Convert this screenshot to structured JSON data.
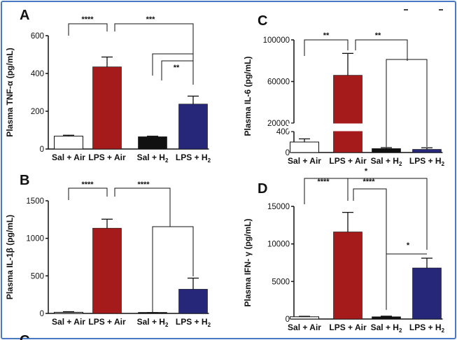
{
  "chart_data": [
    {
      "panel_label": "A",
      "type": "bar",
      "ylabel": "Plasma TNF-α (pg/mL)",
      "ylim": [
        0,
        600
      ],
      "yticks": [
        "0",
        "200",
        "400",
        "600"
      ],
      "tick_values": [
        0,
        200,
        400,
        600
      ],
      "categories": [
        "Sal + Air",
        "LPS + Air",
        "Sal + H",
        "LPS + H"
      ],
      "subscripts": [
        "",
        "",
        "2",
        "2"
      ],
      "values": [
        68,
        435,
        65,
        238
      ],
      "errors": [
        5,
        52,
        3,
        42
      ],
      "bar_colors": [
        "#ffffff",
        "#a51b1b",
        "#111111",
        "#27277a"
      ],
      "significance": [
        {
          "from": 0,
          "to": 1,
          "label": "****"
        },
        {
          "from": 1,
          "to": 3,
          "label": "***"
        },
        {
          "from": 2,
          "to": 3,
          "label": "**"
        }
      ]
    },
    {
      "panel_label": "B",
      "type": "bar",
      "ylabel": "Plasma IL-1β (pg/mL)",
      "ylim": [
        0,
        1500
      ],
      "yticks": [
        "0",
        "500",
        "1000",
        "1500"
      ],
      "tick_values": [
        0,
        500,
        1000,
        1500
      ],
      "categories": [
        "Sal + Air",
        "LPS + Air",
        "Sal + H",
        "LPS + H"
      ],
      "subscripts": [
        "",
        "",
        "2",
        "2"
      ],
      "values": [
        15,
        1135,
        8,
        322
      ],
      "errors": [
        8,
        120,
        3,
        148
      ],
      "bar_colors": [
        "#ffffff",
        "#a51b1b",
        "#111111",
        "#27277a"
      ],
      "significance": [
        {
          "from": 0,
          "to": 1,
          "label": "****"
        },
        {
          "from": 1,
          "to": 3,
          "label": "****"
        }
      ]
    },
    {
      "panel_label": "C",
      "type": "bar",
      "broken_axis": true,
      "ylabel": "Plasma IL-6 (pg/mL)",
      "ylim": [
        0,
        100000
      ],
      "yticks": [
        "0",
        "400",
        "20000",
        "60000",
        "100000"
      ],
      "tick_values": [
        0,
        400,
        20000,
        60000,
        100000
      ],
      "categories": [
        "Sal + Air",
        "LPS + Air",
        "Sal + H",
        "LPS + H"
      ],
      "subscripts": [
        "",
        "",
        "2",
        "2"
      ],
      "values": [
        200,
        66000,
        75,
        60
      ],
      "errors": [
        60,
        21000,
        18,
        30
      ],
      "bar_colors": [
        "#ffffff",
        "#a51b1b",
        "#111111",
        "#27277a"
      ],
      "significance": [
        {
          "from": 0,
          "to": 1,
          "label": "**"
        },
        {
          "from": 1,
          "to": 3,
          "label": "**"
        }
      ]
    },
    {
      "panel_label": "D",
      "type": "bar",
      "ylabel": "Plasma IFN- γ (pg/mL)",
      "ylim": [
        0,
        15000
      ],
      "yticks": [
        "0",
        "5000",
        "10000",
        "15000"
      ],
      "tick_values": [
        0,
        5000,
        10000,
        15000
      ],
      "categories": [
        "Sal + Air",
        "LPS + Air",
        "Sal + H",
        "LPS + H"
      ],
      "subscripts": [
        "",
        "",
        "2",
        "2"
      ],
      "values": [
        300,
        11600,
        300,
        6800
      ],
      "errors": [
        60,
        2600,
        80,
        1300
      ],
      "bar_colors": [
        "#ffffff",
        "#a51b1b",
        "#111111",
        "#27277a"
      ],
      "significance": [
        {
          "from": 0,
          "to": 1,
          "label": "****"
        },
        {
          "from": 1,
          "to": 2,
          "label": "****"
        },
        {
          "from": 0,
          "to": 3,
          "label": "*"
        },
        {
          "from": 2,
          "to": 3,
          "label": "*"
        }
      ]
    }
  ],
  "cut_off_panel_label": "C"
}
